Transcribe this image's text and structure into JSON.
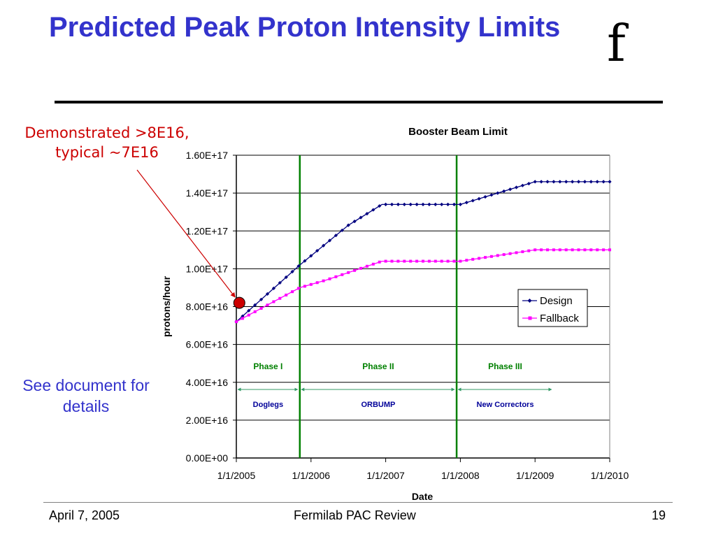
{
  "slide": {
    "title": "Predicted Peak Proton Intensity Limits",
    "logo_text": "f",
    "callout": "Demonstrated >8E16, typical ~7E16",
    "side_note": "See document for details",
    "footer_left": "April 7, 2005",
    "footer_center": "Fermilab PAC Review",
    "footer_right": "19"
  },
  "colors": {
    "title": "#3333cc",
    "design": "#000080",
    "fallback": "#ff00ff",
    "phase_line": "#008000",
    "phase_text": "#008000",
    "span_text": "#000099",
    "callout": "#cc0000",
    "marker": "#cc0000"
  },
  "chart_data": {
    "type": "line",
    "title": "Booster Beam Limit",
    "xlabel": "Date",
    "ylabel": "protons/hour",
    "x_tick_labels": [
      "1/1/2005",
      "1/1/2006",
      "1/1/2007",
      "1/1/2008",
      "1/1/2009",
      "1/1/2010"
    ],
    "y_tick_labels": [
      "0.00E+00",
      "2.00E+16",
      "4.00E+16",
      "6.00E+16",
      "8.00E+16",
      "1.00E+17",
      "1.20E+17",
      "1.40E+17",
      "1.60E+17"
    ],
    "xlim": [
      2005.0,
      2010.0
    ],
    "ylim": [
      0,
      1.6e+17
    ],
    "grid": "horizontal",
    "legend_position": "right",
    "series": [
      {
        "name": "Design",
        "marker": "diamond",
        "points": [
          [
            2005.0,
            7.2e+16
          ],
          [
            2005.85,
            1.02e+17
          ],
          [
            2006.5,
            1.23e+17
          ],
          [
            2006.95,
            1.34e+17
          ],
          [
            2008.0,
            1.34e+17
          ],
          [
            2009.0,
            1.46e+17
          ],
          [
            2010.0,
            1.46e+17
          ]
        ]
      },
      {
        "name": "Fallback",
        "marker": "square",
        "points": [
          [
            2005.0,
            7.2e+16
          ],
          [
            2005.85,
            9e+16
          ],
          [
            2006.2,
            9.4e+16
          ],
          [
            2006.95,
            1.04e+17
          ],
          [
            2008.0,
            1.04e+17
          ],
          [
            2009.0,
            1.1e+17
          ],
          [
            2010.0,
            1.1e+17
          ]
        ]
      }
    ],
    "phase_lines": [
      2005.85,
      2007.95
    ],
    "phases": [
      {
        "label": "Phase I",
        "span_label": "Doglegs",
        "start": 2005.0,
        "end": 2005.85
      },
      {
        "label": "Phase II",
        "span_label": "ORBUMP",
        "start": 2005.85,
        "end": 2007.95
      },
      {
        "label": "Phase III",
        "span_label": "New Correctors",
        "start": 2007.95,
        "end": 2009.25
      }
    ],
    "demonstrated_point": {
      "x": 2005.04,
      "y": 8.2e+16
    }
  }
}
